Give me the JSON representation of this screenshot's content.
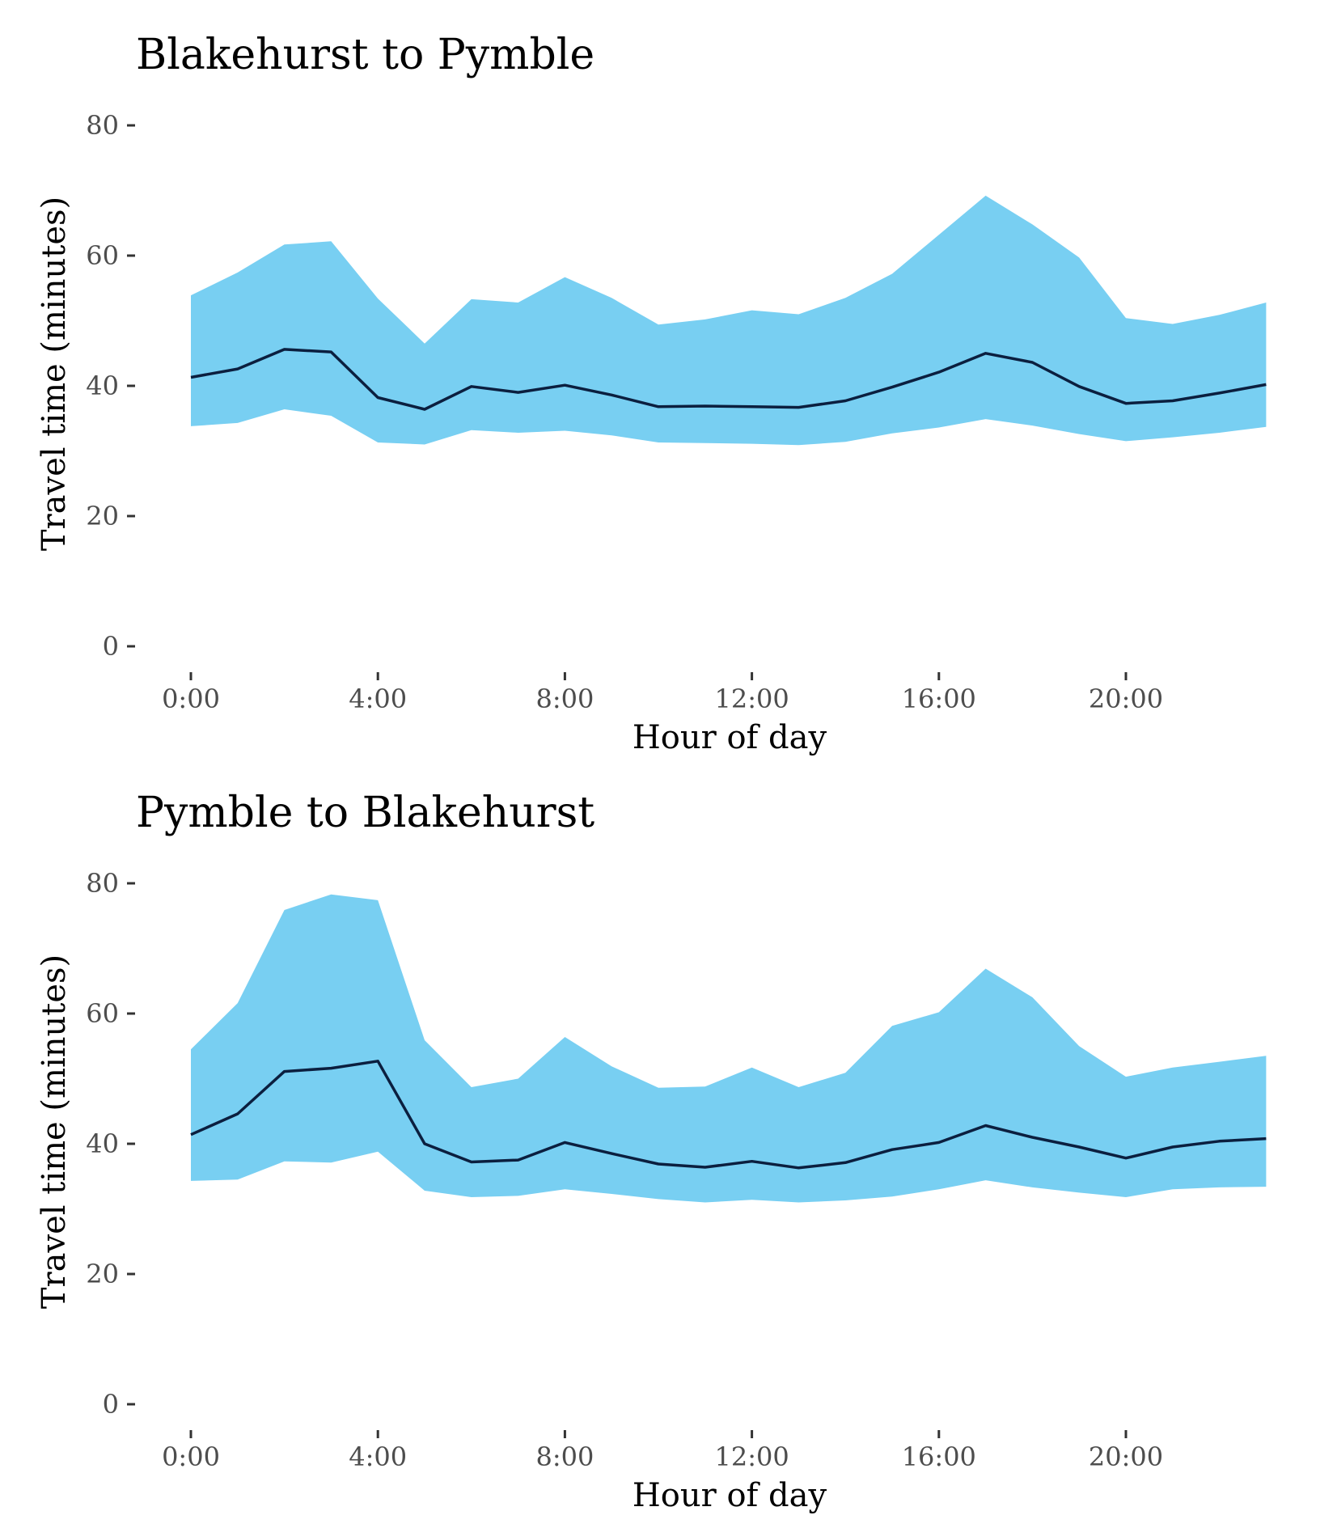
{
  "colors": {
    "band": "#78cff2",
    "line": "#0b1f3f",
    "tick_text": "#4d4d4d",
    "tick_mark": "#333333",
    "text": "#000000"
  },
  "chart_data": [
    {
      "type": "area",
      "title": "Blakehurst to Pymble",
      "xlabel": "Hour of day",
      "ylabel": "Travel time (minutes)",
      "x": [
        0,
        1,
        2,
        3,
        4,
        5,
        6,
        7,
        8,
        9,
        10,
        11,
        12,
        13,
        14,
        15,
        16,
        17,
        18,
        19,
        20,
        21,
        22,
        23
      ],
      "x_ticks": [
        0,
        4,
        8,
        12,
        16,
        20
      ],
      "x_tick_labels": [
        "0:00",
        "4:00",
        "8:00",
        "12:00",
        "16:00",
        "20:00"
      ],
      "y_ticks": [
        0,
        20,
        40,
        60,
        80
      ],
      "y_tick_labels": [
        "0",
        "20",
        "40",
        "60",
        "80"
      ],
      "xlim": [
        -0.5,
        23.5
      ],
      "ylim": [
        0,
        82
      ],
      "grid": false,
      "series": [
        {
          "kind": "band",
          "lower": [
            33.8,
            34.3,
            36.4,
            35.4,
            31.3,
            31.0,
            33.2,
            32.8,
            33.1,
            32.4,
            31.3,
            31.2,
            31.1,
            30.9,
            31.4,
            32.7,
            33.6,
            34.9,
            33.9,
            32.6,
            31.5,
            32.1,
            32.8,
            33.7
          ],
          "upper": [
            53.9,
            57.4,
            61.7,
            62.2,
            53.4,
            46.5,
            53.3,
            52.8,
            56.7,
            53.5,
            49.4,
            50.2,
            51.6,
            51.0,
            53.5,
            57.2,
            63.2,
            69.2,
            64.8,
            59.7,
            50.4,
            49.5,
            50.9,
            52.8
          ]
        },
        {
          "kind": "line",
          "values": [
            41.3,
            42.6,
            45.6,
            45.2,
            38.2,
            36.4,
            39.9,
            39.0,
            40.1,
            38.6,
            36.8,
            36.9,
            36.8,
            36.7,
            37.7,
            39.8,
            42.1,
            45.0,
            43.6,
            39.9,
            37.3,
            37.7,
            38.9,
            40.2
          ]
        }
      ]
    },
    {
      "type": "area",
      "title": "Pymble to Blakehurst",
      "xlabel": "Hour of day",
      "ylabel": "Travel time (minutes)",
      "x": [
        0,
        1,
        2,
        3,
        4,
        5,
        6,
        7,
        8,
        9,
        10,
        11,
        12,
        13,
        14,
        15,
        16,
        17,
        18,
        19,
        20,
        21,
        22,
        23
      ],
      "x_ticks": [
        0,
        4,
        8,
        12,
        16,
        20
      ],
      "x_tick_labels": [
        "0:00",
        "4:00",
        "8:00",
        "12:00",
        "16:00",
        "20:00"
      ],
      "y_ticks": [
        0,
        20,
        40,
        60,
        80
      ],
      "y_tick_labels": [
        "0",
        "20",
        "40",
        "60",
        "80"
      ],
      "xlim": [
        -0.5,
        23.5
      ],
      "ylim": [
        0,
        82
      ],
      "grid": false,
      "series": [
        {
          "kind": "band",
          "lower": [
            34.3,
            34.5,
            37.3,
            37.1,
            38.8,
            32.8,
            31.8,
            32.0,
            33.0,
            32.3,
            31.5,
            31.0,
            31.4,
            31.0,
            31.3,
            31.9,
            33.0,
            34.4,
            33.3,
            32.5,
            31.8,
            33.0,
            33.3,
            33.4
          ],
          "upper": [
            54.5,
            61.6,
            75.9,
            78.3,
            77.4,
            55.9,
            48.7,
            50.0,
            56.4,
            51.9,
            48.6,
            48.8,
            51.7,
            48.7,
            50.9,
            58.1,
            60.2,
            66.9,
            62.5,
            55.0,
            50.3,
            51.7,
            52.6,
            53.5
          ]
        },
        {
          "kind": "line",
          "values": [
            41.4,
            44.6,
            51.1,
            51.6,
            52.7,
            40.0,
            37.2,
            37.5,
            40.2,
            38.5,
            36.9,
            36.4,
            37.3,
            36.3,
            37.1,
            39.1,
            40.2,
            42.8,
            41.0,
            39.5,
            37.8,
            39.5,
            40.4,
            40.8
          ]
        }
      ]
    }
  ]
}
